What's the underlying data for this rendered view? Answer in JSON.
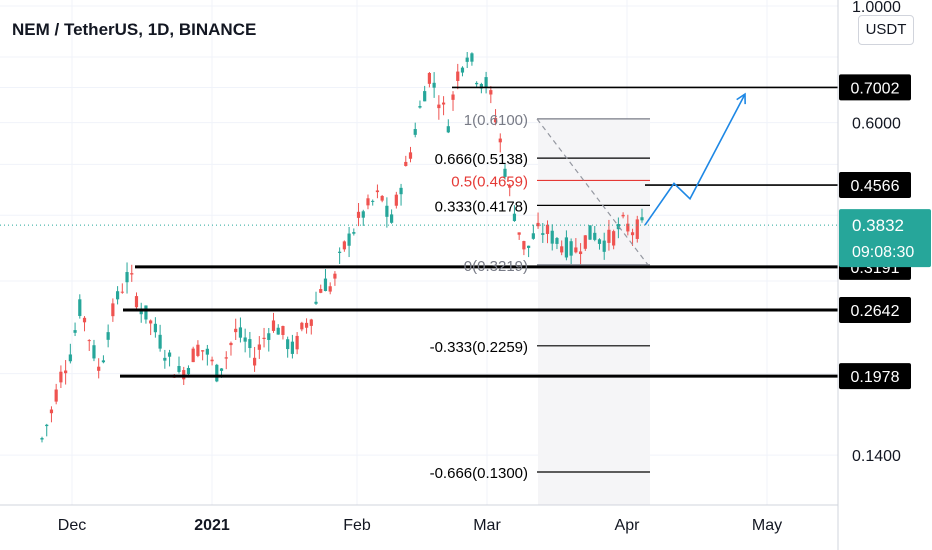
{
  "header": {
    "title": "NEM / TetherUS, 1D, BINANCE",
    "unit_button": "USDT"
  },
  "colors": {
    "up": "#26a69a",
    "down": "#ef5350",
    "level_line": "#000000",
    "fib_red": "#e53935",
    "projection": "#1e88e5",
    "price_tag_green": "#26a69a",
    "price_tag_black": "#000000"
  },
  "chart_data": {
    "type": "candlestick",
    "title": "NEM / TetherUS, 1D, BINANCE",
    "price_scale": "log",
    "ylim": [
      0.115,
      1.0
    ],
    "x_ticks": [
      "Dec",
      "2021",
      "Feb",
      "Mar",
      "Apr",
      "May"
    ],
    "y_ticks": [
      "1.0000",
      "0.6000",
      "0.1400"
    ],
    "current_price": "0.3832",
    "countdown": "09:08:30",
    "levels": [
      {
        "value": 0.7002,
        "label": "0.7002"
      },
      {
        "value": 0.4566,
        "label": "0.4566"
      },
      {
        "value": 0.3191,
        "label": "0.3191"
      },
      {
        "value": 0.2642,
        "label": "0.2642"
      },
      {
        "value": 0.1978,
        "label": "0.1978"
      }
    ],
    "fibonacci": [
      {
        "ratio": "1",
        "value": "0.6100",
        "label": "1(0.6100)"
      },
      {
        "ratio": "0.666",
        "value": "0.5138",
        "label": "0.666(0.5138)"
      },
      {
        "ratio": "0.5",
        "value": "0.4659",
        "label": "0.5(0.4659)"
      },
      {
        "ratio": "0.333",
        "value": "0.4178",
        "label": "0.333(0.4178)"
      },
      {
        "ratio": "0",
        "value": "0.3219",
        "label": "0(0.3219)"
      },
      {
        "ratio": "-0.333",
        "value": "0.2259",
        "label": "-0.333(0.2259)"
      },
      {
        "ratio": "-0.666",
        "value": "0.1300",
        "label": "-0.666(0.1300)"
      }
    ],
    "price_path": [
      [
        0.15,
        0.147
      ],
      [
        0.17,
        0.17
      ],
      [
        0.2,
        0.205
      ],
      [
        0.22,
        0.225
      ],
      [
        0.27,
        0.27
      ],
      [
        0.23,
        0.23
      ],
      [
        0.2,
        0.2
      ],
      [
        0.25,
        0.25
      ],
      [
        0.285,
        0.285
      ],
      [
        0.31,
        0.31
      ],
      [
        0.27,
        0.27
      ],
      [
        0.255,
        0.255
      ],
      [
        0.235,
        0.235
      ],
      [
        0.215,
        0.215
      ],
      [
        0.2,
        0.2
      ],
      [
        0.205,
        0.205
      ],
      [
        0.225,
        0.225
      ],
      [
        0.22,
        0.22
      ],
      [
        0.2,
        0.2
      ],
      [
        0.215,
        0.215
      ],
      [
        0.24,
        0.24
      ],
      [
        0.23,
        0.23
      ],
      [
        0.215,
        0.215
      ],
      [
        0.235,
        0.235
      ],
      [
        0.25,
        0.25
      ],
      [
        0.235,
        0.235
      ],
      [
        0.22,
        0.22
      ],
      [
        0.245,
        0.245
      ],
      [
        0.26,
        0.26
      ],
      [
        0.3,
        0.3
      ],
      [
        0.29,
        0.29
      ],
      [
        0.34,
        0.34
      ],
      [
        0.37,
        0.37
      ],
      [
        0.4,
        0.4
      ],
      [
        0.42,
        0.42
      ],
      [
        0.44,
        0.44
      ],
      [
        0.38,
        0.38
      ],
      [
        0.45,
        0.45
      ],
      [
        0.52,
        0.52
      ],
      [
        0.63,
        0.63
      ],
      [
        0.74,
        0.74
      ],
      [
        0.67,
        0.67
      ],
      [
        0.6,
        0.6
      ],
      [
        0.75,
        0.75
      ],
      [
        0.82,
        0.82
      ],
      [
        0.73,
        0.73
      ],
      [
        0.71,
        0.71
      ],
      [
        0.6,
        0.6
      ],
      [
        0.47,
        0.47
      ],
      [
        0.39,
        0.39
      ],
      [
        0.34,
        0.34
      ],
      [
        0.37,
        0.37
      ],
      [
        0.375,
        0.375
      ],
      [
        0.36,
        0.36
      ],
      [
        0.35,
        0.35
      ],
      [
        0.34,
        0.34
      ],
      [
        0.36,
        0.36
      ],
      [
        0.37,
        0.37
      ],
      [
        0.355,
        0.355
      ],
      [
        0.365,
        0.365
      ],
      [
        0.385,
        0.385
      ],
      [
        0.375,
        0.375
      ],
      [
        0.38,
        0.38
      ]
    ],
    "projection": [
      0.3832,
      0.46,
      0.43,
      0.68
    ]
  }
}
